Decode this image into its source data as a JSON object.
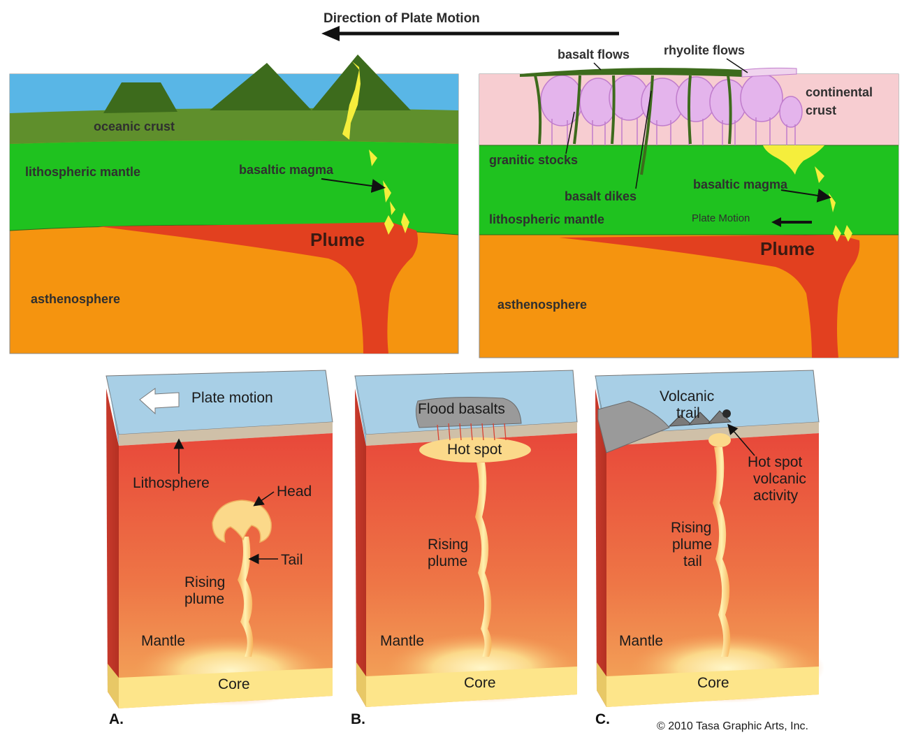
{
  "colors": {
    "ocean": "#59b6e6",
    "oceanic_crust": "#5f8f2c",
    "lithosphere_green": "#1fc21f",
    "asthenosphere": "#f5940f",
    "plume": "#e2401f",
    "magma": "#f5ee3c",
    "continental_crust": "#f7cdd1",
    "mountain": "#3d6b1c",
    "mantle_top": "#ea4b3a",
    "mantle_bottom": "#f3a85a",
    "core": "#fde58a",
    "plate_surface": "#a8cfe6"
  },
  "top": {
    "direction_label": "Direction of Plate Motion",
    "left": {
      "oceanic_crust": "oceanic crust",
      "lithospheric_mantle": "lithospheric mantle",
      "basaltic_magma": "basaltic magma",
      "plume": "Plume",
      "asthenosphere": "asthenosphere"
    },
    "right": {
      "basalt_flows": "basalt flows",
      "rhyolite_flows": "rhyolite flows",
      "continental_crust_1": "continental",
      "continental_crust_2": "crust",
      "granitic_stocks": "granitic stocks",
      "basalt_dikes": "basalt dikes",
      "basaltic_magma": "basaltic magma",
      "lithospheric_mantle": "lithospheric mantle",
      "plate_motion": "Plate Motion",
      "plume": "Plume",
      "asthenosphere": "asthenosphere"
    }
  },
  "bottom": {
    "a": {
      "panel_label": "A.",
      "plate_motion": "Plate motion",
      "lithosphere": "Lithosphere",
      "head": "Head",
      "tail": "Tail",
      "rising_1": "Rising",
      "rising_2": "plume",
      "mantle": "Mantle",
      "core": "Core"
    },
    "b": {
      "panel_label": "B.",
      "flood_basalts": "Flood basalts",
      "hot_spot": "Hot spot",
      "rising_1": "Rising",
      "rising_2": "plume",
      "mantle": "Mantle",
      "core": "Core"
    },
    "c": {
      "panel_label": "C.",
      "volcanic_1": "Volcanic",
      "volcanic_2": "trail",
      "hot_spot_1": "Hot spot",
      "hot_spot_2": "volcanic",
      "hot_spot_3": "activity",
      "rising_1": "Rising",
      "rising_2": "plume",
      "rising_3": "tail",
      "mantle": "Mantle",
      "core": "Core"
    },
    "copyright": "© 2010 Tasa Graphic Arts, Inc."
  }
}
